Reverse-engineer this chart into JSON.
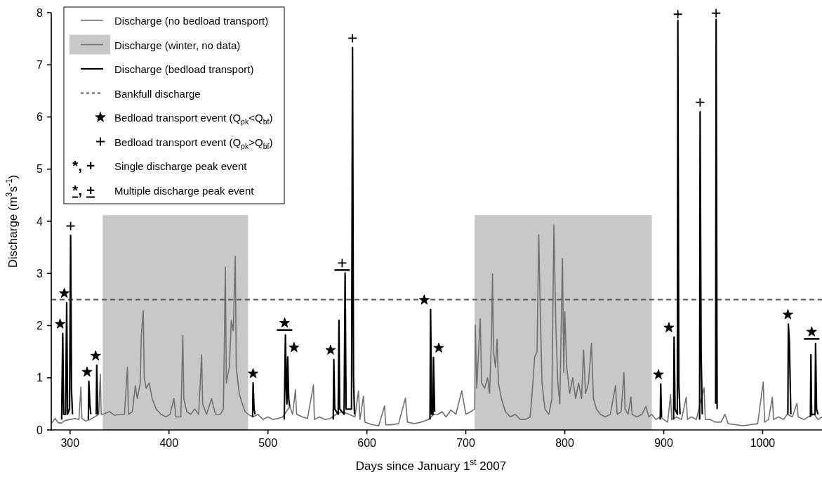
{
  "chart_data": {
    "type": "line",
    "xlabel": "Days since January 1$^{st}$ 2007",
    "ylabel": "Discharge (m$^{3}$s$^{-1}$)",
    "xlim": [
      281,
      1060
    ],
    "ylim": [
      0,
      8
    ],
    "xticks": [
      300,
      400,
      500,
      600,
      700,
      800,
      900,
      1000
    ],
    "yticks": [
      0,
      1,
      2,
      3,
      4,
      5,
      6,
      7,
      8
    ],
    "grid": false,
    "legend": "top left",
    "line_style": "solid",
    "marker": "none",
    "bands": [
      {
        "axis": "x",
        "from": 333,
        "to": 480,
        "color": "#c8c8c8"
      },
      {
        "axis": "x",
        "from": 709,
        "to": 888,
        "color": "#c8c8c8"
      }
    ],
    "ref_lines": [
      {
        "axis": "y",
        "value": 2.5,
        "label": "Bankfull discharge",
        "color": "#555555",
        "line_style": "dashed"
      }
    ],
    "annotations": [
      "*, + Single discharge peak event",
      "*, + Multiple discharge peak event"
    ],
    "series": [
      {
        "name": "Discharge (no bedload transport)",
        "color": "#707070",
        "x": [
          281,
          285,
          288,
          291,
          295,
          300,
          305,
          309,
          311,
          312,
          316,
          320,
          325,
          329,
          330.6,
          331.5,
          333,
          null,
          480,
          485,
          490,
          495,
          500,
          505,
          510,
          515,
          522,
          525,
          527.8,
          529,
          535,
          540,
          546,
          547,
          552,
          558,
          563,
          569,
          575,
          582,
          588,
          591.5,
          593,
          596.6,
          598,
          605,
          612,
          617.9,
          619,
          625,
          632,
          639,
          641,
          648,
          655,
          662,
          668,
          672,
          676,
          680,
          685,
          690,
          695.9,
          700,
          705,
          709,
          null,
          888,
          892,
          897,
          900,
          904,
          907,
          908,
          913,
          918,
          922.8,
          924,
          928,
          933,
          940.8,
          942,
          947,
          952,
          958,
          962,
          965,
          972,
          980,
          988,
          995,
          1000.6,
          1002,
          1006,
          1009.8,
          1011,
          1016,
          1021,
          1025,
          1030,
          1034.7,
          1036,
          1042,
          1046,
          1052,
          1056,
          1060
        ],
        "values": [
          0.12,
          0.22,
          0.14,
          0.13,
          0.18,
          0.2,
          0.22,
          0.2,
          0.82,
          0.22,
          0.17,
          0.2,
          0.25,
          0.3,
          1.07,
          0.3,
          0.3,
          null,
          0.3,
          0.25,
          0.3,
          0.2,
          0.25,
          0.2,
          0.22,
          0.25,
          0.45,
          0.3,
          0.77,
          0.3,
          0.25,
          0.22,
          0.86,
          0.2,
          0.25,
          0.2,
          0.22,
          0.3,
          0.35,
          0.3,
          0.25,
          0.75,
          0.2,
          0.65,
          0.15,
          0.1,
          0.08,
          0.46,
          0.1,
          0.1,
          0.12,
          0.61,
          0.15,
          0.12,
          0.15,
          0.2,
          0.3,
          0.3,
          0.35,
          0.25,
          0.38,
          0.3,
          0.75,
          0.3,
          0.35,
          0.4,
          null,
          0.3,
          0.2,
          0.25,
          0.2,
          0.15,
          0.68,
          0.2,
          0.25,
          0.2,
          0.63,
          0.2,
          0.25,
          0.2,
          0.81,
          0.2,
          0.2,
          0.15,
          0.15,
          0.3,
          0.12,
          0.1,
          0.08,
          0.1,
          0.12,
          0.92,
          0.15,
          0.2,
          0.63,
          0.2,
          0.25,
          0.2,
          0.3,
          0.25,
          0.51,
          0.25,
          0.2,
          0.25,
          0.3,
          0.2,
          0.25
        ]
      },
      {
        "name": "Discharge (winter, no data)",
        "color": "#707070",
        "x": [
          333,
          340,
          345,
          350,
          355,
          358,
          359,
          363,
          366,
          368,
          371,
          372,
          374,
          375,
          377,
          380,
          383,
          387,
          392,
          397,
          401,
          405,
          407,
          412,
          414,
          415,
          418,
          422,
          426,
          430,
          433,
          434,
          438,
          443,
          447,
          452,
          455,
          457,
          458,
          461,
          463,
          465,
          467,
          468,
          471,
          474,
          477,
          480,
          null,
          709,
          709.6,
          711,
          714.6,
          716,
          719,
          722,
          724,
          726,
          727,
          728,
          730,
          731.6,
          733,
          736,
          740,
          745,
          750,
          755,
          760,
          765,
          767,
          769.6,
          772,
          773.7,
          775,
          777,
          780,
          784,
          787,
          789,
          791,
          793,
          795,
          797.7,
          799,
          800,
          802,
          805,
          808,
          811,
          814,
          817,
          819,
          821,
          824,
          827,
          829,
          832,
          836,
          841,
          846,
          851.3,
          853,
          857,
          859.8,
          861,
          864,
          866.9,
          868,
          873,
          878,
          882,
          885,
          888
        ],
        "values": [
          0.3,
          0.35,
          0.28,
          0.3,
          0.3,
          1.2,
          0.3,
          0.35,
          0.85,
          0.6,
          0.9,
          1.8,
          2.29,
          1.0,
          0.8,
          0.9,
          0.6,
          0.4,
          0.3,
          0.25,
          0.3,
          0.6,
          0.25,
          0.25,
          1.81,
          0.6,
          0.35,
          0.3,
          0.4,
          0.3,
          1.44,
          0.5,
          0.3,
          0.6,
          0.3,
          0.3,
          0.4,
          3.12,
          0.9,
          1.2,
          2.1,
          1.9,
          3.33,
          1.2,
          0.7,
          0.5,
          0.35,
          0.3,
          null,
          0.4,
          2.01,
          0.8,
          2.13,
          0.9,
          0.8,
          1.0,
          0.7,
          1.8,
          2.99,
          1.5,
          1.2,
          1.74,
          0.9,
          0.6,
          0.35,
          0.25,
          0.3,
          0.2,
          0.2,
          0.25,
          0.7,
          1.4,
          1.5,
          3.74,
          2.5,
          0.9,
          0.4,
          0.3,
          0.6,
          3.93,
          2.0,
          0.9,
          0.5,
          3.29,
          1.1,
          2.27,
          1.2,
          0.7,
          1.0,
          0.6,
          0.9,
          0.6,
          1.53,
          0.7,
          0.9,
          1.66,
          0.6,
          0.4,
          0.3,
          0.25,
          0.3,
          0.85,
          0.3,
          0.35,
          1.1,
          0.4,
          0.3,
          0.63,
          0.3,
          0.25,
          0.3,
          0.45,
          0.25,
          0.3
        ]
      },
      {
        "name": "Discharge (bedload transport)",
        "color": "#000000",
        "x": [
          291.5,
          292.6,
          293.5,
          295.5,
          296.6,
          297.5,
          299.5,
          300.6,
          301.5,
          302.5,
          null,
          318.5,
          319,
          320,
          321,
          null,
          326.5,
          327,
          328,
          null,
          484.5,
          485,
          486,
          487,
          null,
          516.5,
          517.7,
          518.5,
          519.2,
          520,
          521,
          522,
          null,
          566,
          566.6,
          567.5,
          571,
          571.8,
          572.5,
          577,
          578,
          579,
          584.5,
          585.5,
          586.5,
          587.5,
          null,
          663.8,
          664.4,
          665.5,
          666.8,
          667.3,
          668.5,
          null,
          896.5,
          897,
          897.8,
          null,
          910,
          910.5,
          911.5,
          913.8,
          914.3,
          915.3,
          916.5,
          null,
          936.3,
          936.8,
          937.8,
          939,
          null,
          952.5,
          953,
          954,
          null,
          1025.5,
          1026,
          1027,
          1028.5,
          null,
          1048.3,
          1048.8,
          1049.5,
          1053,
          1053.5,
          1054.5,
          1056
        ],
        "values": [
          0.2,
          1.85,
          0.3,
          0.3,
          2.44,
          0.3,
          0.4,
          3.73,
          0.75,
          0.3,
          null,
          0.2,
          0.93,
          0.5,
          0.3,
          null,
          0.3,
          1.24,
          0.3,
          null,
          0.25,
          0.9,
          0.4,
          0.3,
          null,
          0.2,
          1.82,
          0.8,
          0.5,
          1.4,
          0.6,
          0.45,
          null,
          0.2,
          1.35,
          0.4,
          0.3,
          2.1,
          0.4,
          0.3,
          3.01,
          0.4,
          0.4,
          7.33,
          1.0,
          0.3,
          null,
          0.2,
          2.31,
          0.3,
          0.3,
          1.39,
          0.35,
          null,
          0.2,
          0.88,
          0.25,
          null,
          0.2,
          1.78,
          0.4,
          0.3,
          7.85,
          0.9,
          0.3,
          null,
          0.2,
          6.1,
          1.5,
          0.3,
          null,
          0.5,
          7.87,
          0.4,
          null,
          0.3,
          2.03,
          1.7,
          0.3,
          null,
          0.25,
          1.44,
          0.3,
          0.3,
          1.66,
          0.4,
          0.3
        ]
      },
      {
        "name": "Bedload transport event (Q$_{pk}$<Q$_{bf}$)",
        "type": "scatter",
        "marker": "star",
        "color": "#000000",
        "x": [
          290,
          294.2,
          317.2,
          325.9,
          485,
          526.4,
          563.3,
          658,
          672.7,
          894.7,
          905.3,
          1025.5
        ],
        "values": [
          2.03,
          2.62,
          1.11,
          1.42,
          1.08,
          1.58,
          1.53,
          2.49,
          1.57,
          1.06,
          1.96,
          2.21
        ]
      },
      {
        "name": "Bedload transport event (Q$_{pk}$>Q$_{bf}$)",
        "type": "scatter",
        "marker": "cross",
        "color": "#000000",
        "x": [
          300.6,
          585.5,
          914.3,
          936.8,
          953
        ],
        "values": [
          3.91,
          7.51,
          7.97,
          6.28,
          7.99
        ]
      },
      {
        "type": "scatter",
        "marker": "star",
        "line_style": "solid",
        "color": "#000000",
        "x": [
          516.9,
          1049.6
        ],
        "values": [
          2.05,
          1.88
        ]
      },
      {
        "type": "scatter",
        "marker": "cross",
        "line_style": "solid",
        "color": "#000000",
        "x": [
          575
        ],
        "values": [
          3.2
        ]
      }
    ]
  }
}
